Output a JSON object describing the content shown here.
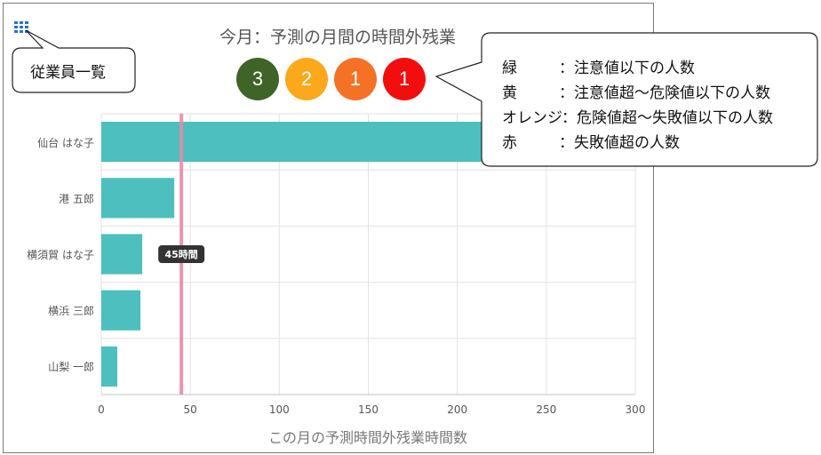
{
  "header": {
    "title": "今月：予測の月間の時間外残業",
    "grid_icon": "grid-apps-icon",
    "employee_list_label": "従業員一覧"
  },
  "badges": [
    {
      "value": "3",
      "color": "#3f6428"
    },
    {
      "value": "2",
      "color": "#fba81a"
    },
    {
      "value": "1",
      "color": "#f57126"
    },
    {
      "value": "1",
      "color": "#f20e0e"
    }
  ],
  "legend_callout": [
    {
      "key": "緑",
      "desc": "：注意値以下の人数"
    },
    {
      "key": "黄",
      "desc": "：注意値超～危険値以下の人数"
    },
    {
      "key": "オレンジ",
      "desc": "：危険値超～失敗値以下の人数"
    },
    {
      "key": "赤",
      "desc": "：失敗値超の人数"
    }
  ],
  "chart_data": {
    "type": "bar",
    "orientation": "horizontal",
    "categories": [
      "仙台 はな子",
      "港 五郎",
      "横須賀 はな子",
      "横浜 三郎",
      "山梨 一郎"
    ],
    "values": [
      225,
      41,
      23,
      22,
      9
    ],
    "bar_color": "#4dbfbf",
    "xlabel": "この月の予測時間外残業時間数",
    "xlim": [
      0,
      300
    ],
    "xticks": [
      0,
      50,
      100,
      150,
      200,
      250,
      300
    ],
    "grid": true,
    "reference_line": {
      "value": 45,
      "label": "45時間",
      "color": "#e88aa8"
    }
  }
}
